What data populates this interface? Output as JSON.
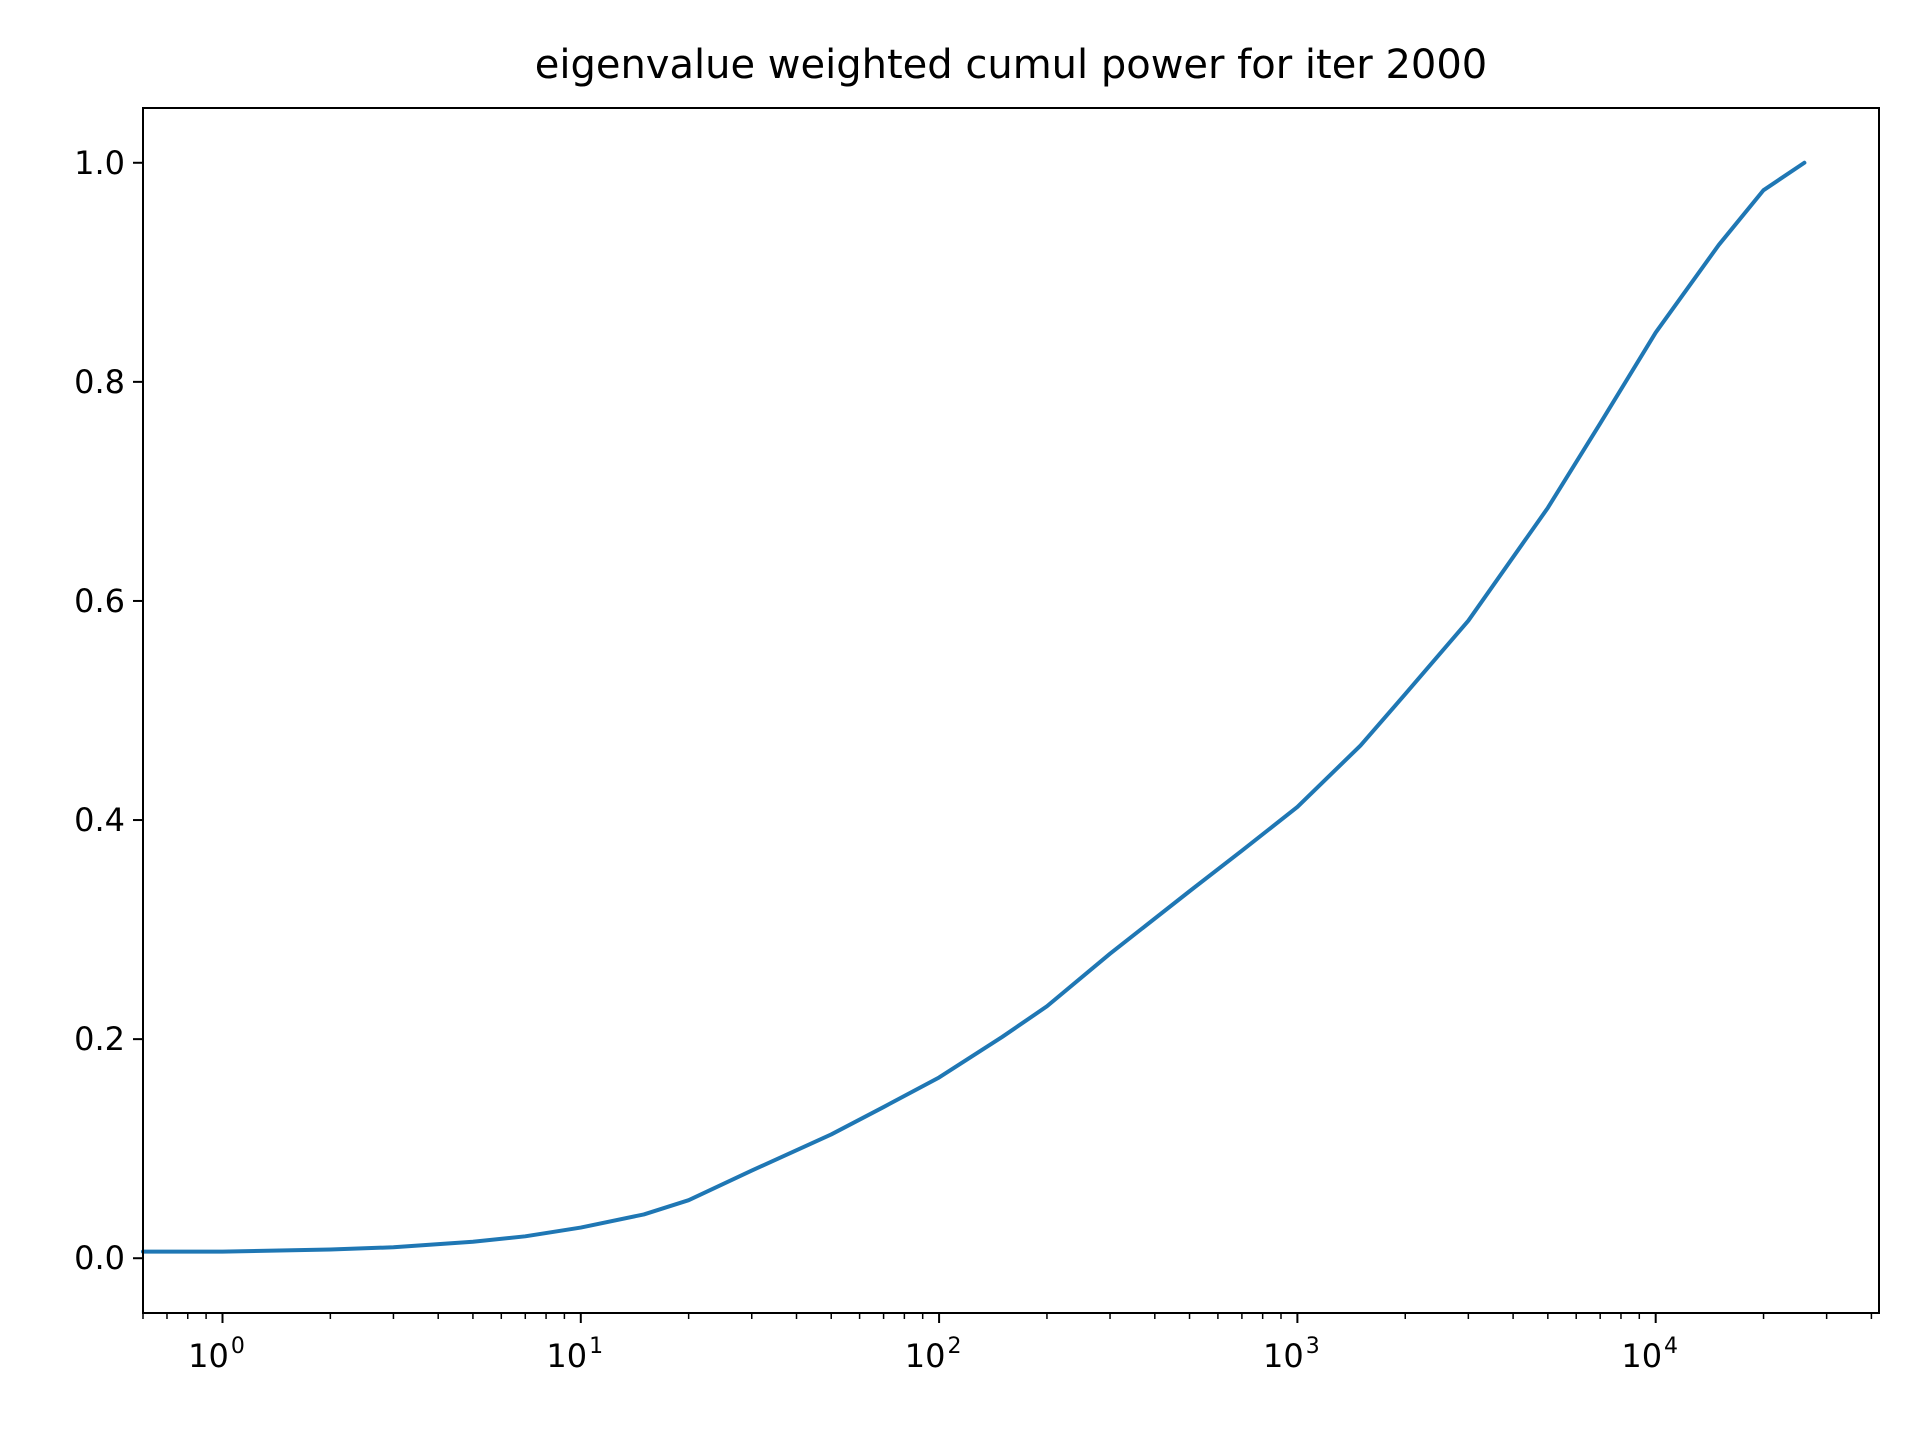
{
  "chart_data": {
    "type": "line",
    "title": "eigenvalue weighted cumul power for iter 2000",
    "xlabel": "",
    "ylabel": "",
    "xscale": "log",
    "xlim": [
      0.6,
      42000
    ],
    "ylim": [
      -0.05,
      1.05
    ],
    "grid": false,
    "legend": "none",
    "line_color": "#1f77b4",
    "x_ticks": [
      {
        "base": "10",
        "exp": "0",
        "value": 1
      },
      {
        "base": "10",
        "exp": "1",
        "value": 10
      },
      {
        "base": "10",
        "exp": "2",
        "value": 100
      },
      {
        "base": "10",
        "exp": "3",
        "value": 1000
      },
      {
        "base": "10",
        "exp": "4",
        "value": 10000
      }
    ],
    "y_ticks": [
      {
        "label": "0.0",
        "value": 0.0
      },
      {
        "label": "0.2",
        "value": 0.2
      },
      {
        "label": "0.4",
        "value": 0.4
      },
      {
        "label": "0.6",
        "value": 0.6
      },
      {
        "label": "0.8",
        "value": 0.8
      },
      {
        "label": "1.0",
        "value": 1.0
      }
    ],
    "series": [
      {
        "x": [
          0.6,
          1,
          2,
          3,
          5,
          7,
          10,
          15,
          20,
          30,
          50,
          70,
          100,
          150,
          200,
          300,
          500,
          700,
          1000,
          1500,
          2000,
          3000,
          5000,
          7000,
          10000,
          15000,
          20000,
          26000
        ],
        "y": [
          0.006,
          0.006,
          0.008,
          0.01,
          0.015,
          0.02,
          0.028,
          0.04,
          0.053,
          0.08,
          0.113,
          0.138,
          0.165,
          0.202,
          0.23,
          0.278,
          0.335,
          0.372,
          0.412,
          0.468,
          0.515,
          0.582,
          0.685,
          0.762,
          0.845,
          0.925,
          0.975,
          1.0
        ]
      }
    ]
  }
}
